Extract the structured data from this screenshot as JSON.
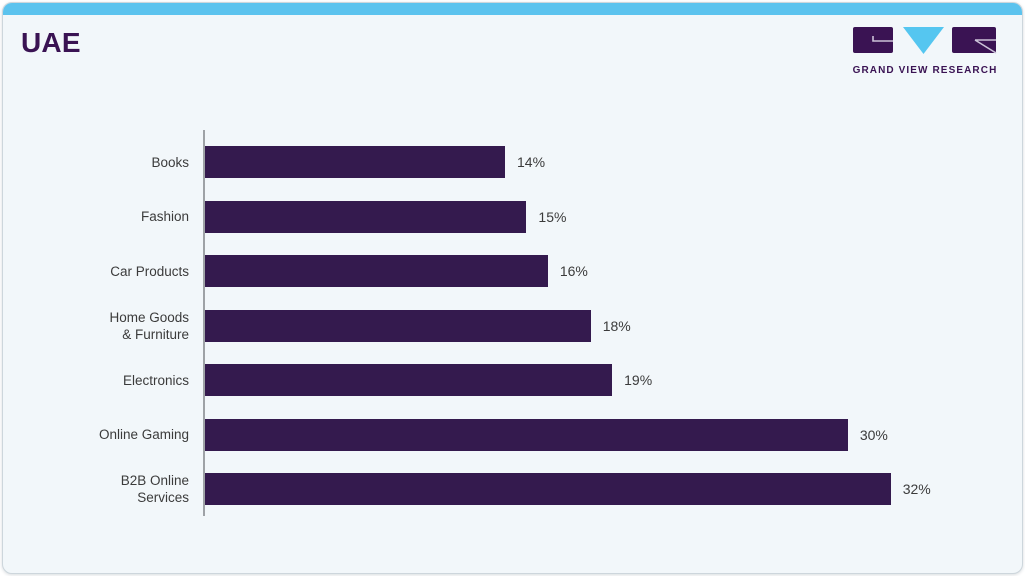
{
  "page": {
    "title": "UAE"
  },
  "logo": {
    "caption": "GRAND VIEW RESEARCH"
  },
  "colors": {
    "bar_purple": "#341A4E",
    "title_purple": "#3A1353",
    "top_band_blue": "#5CC3EE",
    "logo_triangle_blue": "#55C6F0",
    "card_background": "#F2F7FA",
    "axis_gray": "#9EA2A6",
    "label_text": "#3B3B3B"
  },
  "chart_data": {
    "type": "bar",
    "orientation": "horizontal",
    "title": "UAE",
    "categories": [
      "Books",
      "Fashion",
      "Car Products",
      "Home Goods & Furniture",
      "Electronics",
      "Online Gaming",
      "B2B Online Services"
    ],
    "category_display_lines": [
      [
        "Books"
      ],
      [
        "Fashion"
      ],
      [
        "Car Products"
      ],
      [
        "Home Goods",
        "& Furniture"
      ],
      [
        "Electronics"
      ],
      [
        "Online Gaming"
      ],
      [
        "B2B Online",
        "Services"
      ]
    ],
    "values": [
      14,
      15,
      16,
      18,
      19,
      30,
      32
    ],
    "value_labels": [
      "14%",
      "15%",
      "16%",
      "18%",
      "19%",
      "30%",
      "32%"
    ],
    "unit": "%",
    "xlim": [
      0,
      35
    ],
    "grid": false,
    "legend": false
  }
}
